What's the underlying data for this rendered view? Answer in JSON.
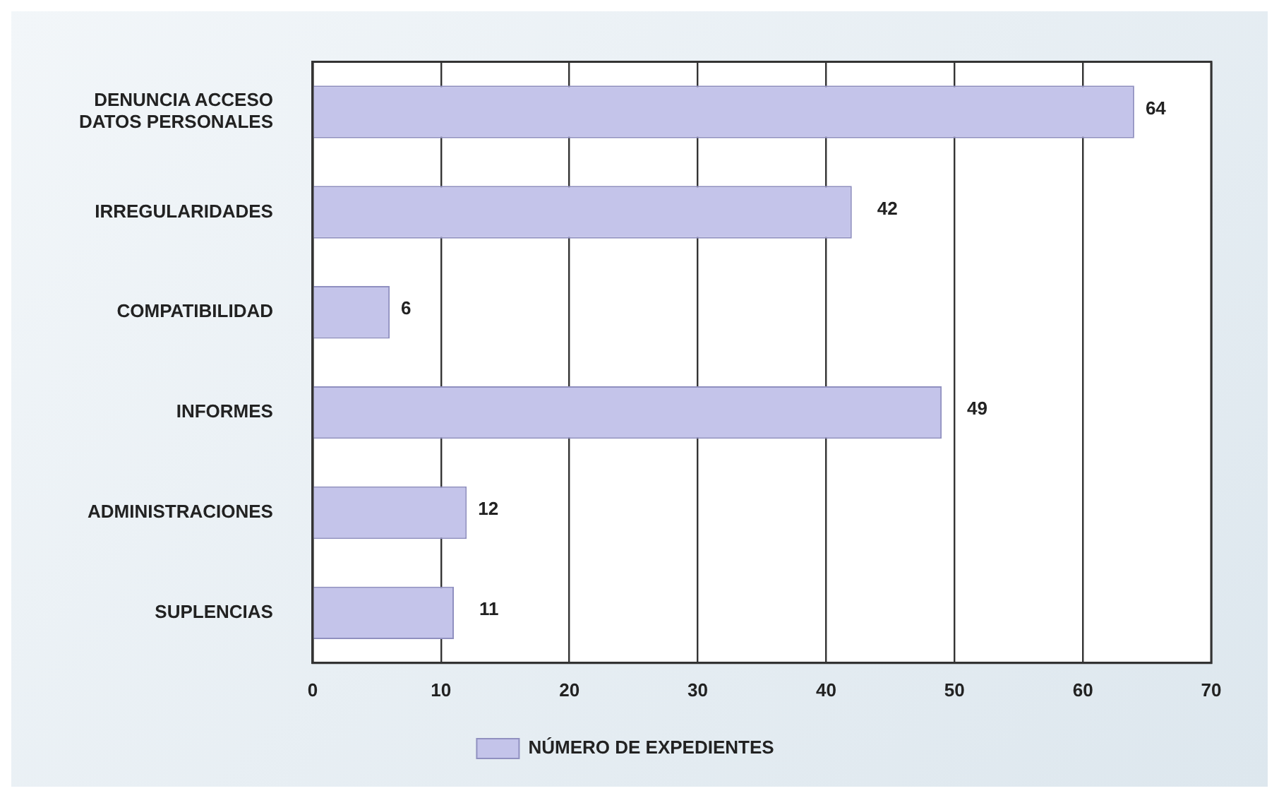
{
  "chart_data": {
    "type": "bar",
    "orientation": "horizontal",
    "categories": [
      "DENUNCIA ACCESO DATOS PERSONALES",
      "IRREGULARIDADES",
      "COMPATIBILIDAD",
      "INFORMES",
      "ADMINISTRACIONES",
      "SUPLENCIAS"
    ],
    "series": [
      {
        "name": "NÚMERO DE EXPEDIENTES",
        "color": "#c4c4ea",
        "values": [
          64,
          42,
          6,
          49,
          12,
          11
        ]
      }
    ],
    "xlim": [
      0,
      70
    ],
    "xticks": [
      0,
      10,
      20,
      30,
      40,
      50,
      60,
      70
    ],
    "grid": "x",
    "legend": "bottom",
    "data_labels": true
  }
}
